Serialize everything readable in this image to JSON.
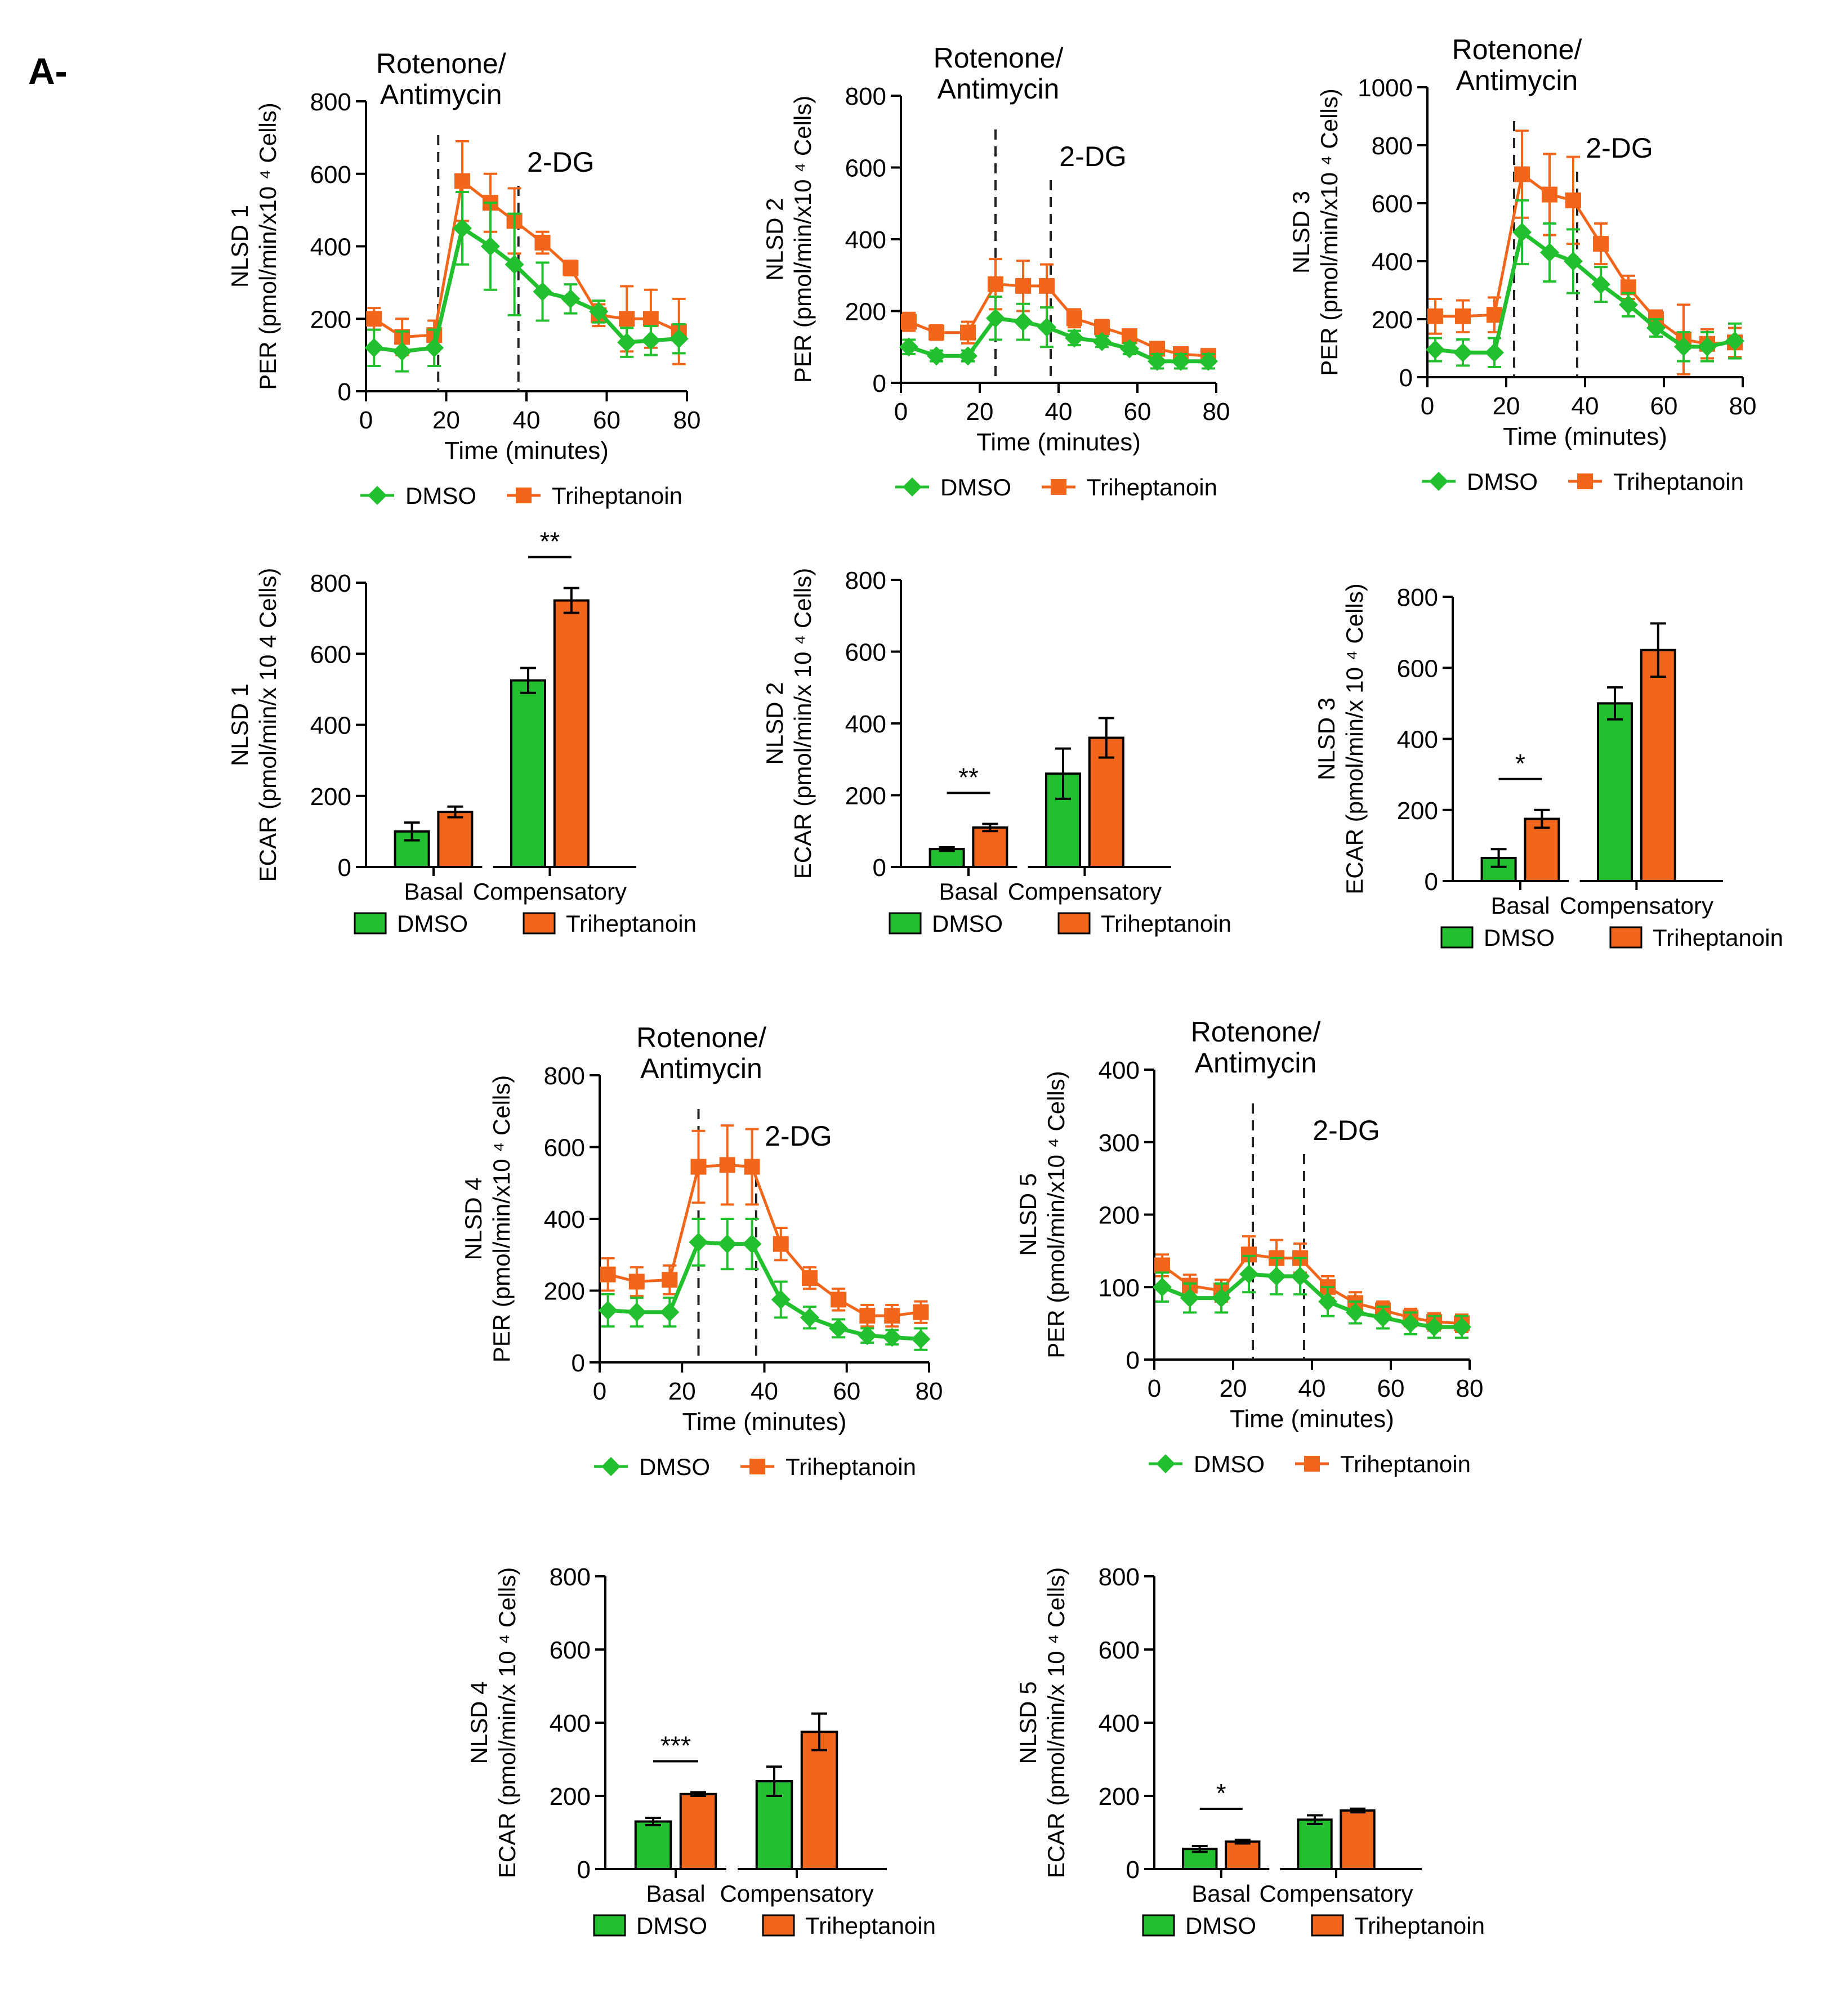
{
  "panel_label": "A-",
  "colors": {
    "dmso": "#22C02E",
    "triheptanoin": "#F2661B",
    "axis": "#000000"
  },
  "chart_data": [
    {
      "id": "per-nlsd1",
      "type": "line",
      "title_lines": [
        "Rotenone/",
        "Antimycin"
      ],
      "marker2_label": "2-DG",
      "ylabel_lines": [
        "NLSD 1",
        "PER (pmol/min/x10 ⁴ Cells)"
      ],
      "xlabel": "Time (minutes)",
      "xlim": [
        0,
        80
      ],
      "ylim": [
        0,
        800
      ],
      "xticks": [
        0,
        20,
        40,
        60,
        80
      ],
      "yticks": [
        0,
        200,
        400,
        600,
        800
      ],
      "injections": [
        18,
        38
      ],
      "x": [
        2,
        9,
        17,
        24,
        31,
        37,
        44,
        51,
        58,
        65,
        71,
        78
      ],
      "series": [
        {
          "name": "DMSO",
          "marker": "diamond",
          "values": [
            120,
            110,
            120,
            450,
            400,
            350,
            275,
            255,
            220,
            135,
            140,
            145
          ],
          "errors": [
            50,
            55,
            50,
            100,
            120,
            140,
            80,
            40,
            30,
            40,
            40,
            40
          ]
        },
        {
          "name": "Triheptanoin",
          "marker": "square",
          "values": [
            200,
            150,
            155,
            580,
            520,
            470,
            410,
            340,
            210,
            200,
            200,
            165
          ],
          "errors": [
            30,
            50,
            40,
            110,
            80,
            90,
            30,
            20,
            30,
            90,
            80,
            90
          ]
        }
      ],
      "legend": [
        "DMSO",
        "Triheptanoin"
      ]
    },
    {
      "id": "per-nlsd2",
      "type": "line",
      "title_lines": [
        "Rotenone/",
        "Antimycin"
      ],
      "marker2_label": "2-DG",
      "ylabel_lines": [
        "NLSD 2",
        "PER (pmol/min/x10 ⁴ Cells)"
      ],
      "xlabel": "Time (minutes)",
      "xlim": [
        0,
        80
      ],
      "ylim": [
        0,
        800
      ],
      "xticks": [
        0,
        20,
        40,
        60,
        80
      ],
      "yticks": [
        0,
        200,
        400,
        600,
        800
      ],
      "injections": [
        24,
        38
      ],
      "x": [
        2,
        9,
        17,
        24,
        31,
        37,
        44,
        51,
        58,
        65,
        71,
        78
      ],
      "series": [
        {
          "name": "DMSO",
          "marker": "diamond",
          "values": [
            100,
            75,
            75,
            180,
            170,
            155,
            125,
            115,
            95,
            60,
            60,
            60
          ],
          "errors": [
            20,
            15,
            15,
            60,
            50,
            55,
            20,
            15,
            15,
            20,
            20,
            20
          ]
        },
        {
          "name": "Triheptanoin",
          "marker": "square",
          "values": [
            170,
            140,
            140,
            275,
            270,
            270,
            180,
            155,
            130,
            95,
            80,
            75
          ],
          "errors": [
            25,
            20,
            30,
            70,
            70,
            60,
            25,
            20,
            15,
            15,
            15,
            15
          ]
        }
      ],
      "legend": [
        "DMSO",
        "Triheptanoin"
      ]
    },
    {
      "id": "per-nlsd3",
      "type": "line",
      "title_lines": [
        "Rotenone/",
        "Antimycin"
      ],
      "marker2_label": "2-DG",
      "ylabel_lines": [
        "NLSD 3",
        "PER (pmol/min/x10 ⁴ Cells)"
      ],
      "xlabel": "Time (minutes)",
      "xlim": [
        0,
        80
      ],
      "ylim": [
        0,
        1000
      ],
      "xticks": [
        0,
        20,
        40,
        60,
        80
      ],
      "yticks": [
        0,
        200,
        400,
        600,
        800,
        1000
      ],
      "injections": [
        22,
        38
      ],
      "x": [
        2,
        9,
        17,
        24,
        31,
        37,
        44,
        51,
        58,
        65,
        71,
        78
      ],
      "series": [
        {
          "name": "DMSO",
          "marker": "diamond",
          "values": [
            95,
            85,
            85,
            500,
            430,
            400,
            320,
            250,
            170,
            105,
            105,
            125
          ],
          "errors": [
            40,
            45,
            50,
            110,
            100,
            110,
            60,
            40,
            30,
            50,
            50,
            60
          ]
        },
        {
          "name": "Triheptanoin",
          "marker": "square",
          "values": [
            210,
            210,
            215,
            700,
            630,
            610,
            460,
            310,
            200,
            130,
            115,
            120
          ],
          "errors": [
            60,
            55,
            60,
            150,
            140,
            150,
            70,
            40,
            30,
            120,
            50,
            50
          ]
        }
      ],
      "legend": [
        "DMSO",
        "Triheptanoin"
      ]
    },
    {
      "id": "ecar-nlsd1",
      "type": "bar",
      "ylabel_lines": [
        "NLSD 1",
        "ECAR (pmol/min/x 10 4 Cells)"
      ],
      "categories": [
        "Basal",
        "Compensatory"
      ],
      "ylim": [
        0,
        800
      ],
      "yticks": [
        0,
        200,
        400,
        600,
        800
      ],
      "series": [
        {
          "name": "DMSO",
          "values": [
            100,
            525
          ],
          "errors": [
            25,
            35
          ]
        },
        {
          "name": "Triheptanoin",
          "values": [
            155,
            750
          ],
          "errors": [
            15,
            35
          ]
        }
      ],
      "significance": [
        {
          "category": 1,
          "label": "**"
        }
      ],
      "legend": [
        "DMSO",
        "Triheptanoin"
      ]
    },
    {
      "id": "ecar-nlsd2",
      "type": "bar",
      "ylabel_lines": [
        "NLSD 2",
        "ECAR (pmol/min/x 10 ⁴ Cells)"
      ],
      "categories": [
        "Basal",
        "Compensatory"
      ],
      "ylim": [
        0,
        800
      ],
      "yticks": [
        0,
        200,
        400,
        600,
        800
      ],
      "series": [
        {
          "name": "DMSO",
          "values": [
            50,
            260
          ],
          "errors": [
            5,
            70
          ]
        },
        {
          "name": "Triheptanoin",
          "values": [
            110,
            360
          ],
          "errors": [
            10,
            55
          ]
        }
      ],
      "significance": [
        {
          "category": 0,
          "label": "**"
        }
      ],
      "legend": [
        "DMSO",
        "Triheptanoin"
      ]
    },
    {
      "id": "ecar-nlsd3",
      "type": "bar",
      "ylabel_lines": [
        "NLSD 3",
        "ECAR (pmol/min/x 10 ⁴ Cells)"
      ],
      "categories": [
        "Basal",
        "Compensatory"
      ],
      "ylim": [
        0,
        800
      ],
      "yticks": [
        0,
        200,
        400,
        600,
        800
      ],
      "series": [
        {
          "name": "DMSO",
          "values": [
            65,
            500
          ],
          "errors": [
            25,
            45
          ]
        },
        {
          "name": "Triheptanoin",
          "values": [
            175,
            650
          ],
          "errors": [
            25,
            75
          ]
        }
      ],
      "significance": [
        {
          "category": 0,
          "label": "*"
        }
      ],
      "legend": [
        "DMSO",
        "Triheptanoin"
      ]
    },
    {
      "id": "per-nlsd4",
      "type": "line",
      "title_lines": [
        "Rotenone/",
        "Antimycin"
      ],
      "marker2_label": "2-DG",
      "ylabel_lines": [
        "NLSD 4",
        "PER (pmol/min/x10 ⁴ Cells)"
      ],
      "xlabel": "Time (minutes)",
      "xlim": [
        0,
        80
      ],
      "ylim": [
        0,
        800
      ],
      "xticks": [
        0,
        20,
        40,
        60,
        80
      ],
      "yticks": [
        0,
        200,
        400,
        600,
        800
      ],
      "injections": [
        24,
        38
      ],
      "x": [
        2,
        9,
        17,
        24,
        31,
        37,
        44,
        51,
        58,
        65,
        71,
        78
      ],
      "series": [
        {
          "name": "DMSO",
          "marker": "diamond",
          "values": [
            145,
            140,
            140,
            335,
            330,
            330,
            175,
            125,
            95,
            75,
            70,
            65
          ],
          "errors": [
            45,
            40,
            40,
            65,
            70,
            70,
            50,
            30,
            25,
            20,
            20,
            30
          ]
        },
        {
          "name": "Triheptanoin",
          "marker": "square",
          "values": [
            245,
            225,
            230,
            545,
            550,
            545,
            330,
            235,
            175,
            130,
            130,
            140
          ],
          "errors": [
            45,
            40,
            40,
            100,
            110,
            105,
            45,
            30,
            30,
            30,
            30,
            30
          ]
        }
      ],
      "legend": [
        "DMSO",
        "Triheptanoin"
      ]
    },
    {
      "id": "per-nlsd5",
      "type": "line",
      "title_lines": [
        "Rotenone/",
        "Antimycin"
      ],
      "marker2_label": "2-DG",
      "ylabel_lines": [
        "NLSD 5",
        "PER (pmol/min/x10 ⁴ Cells)"
      ],
      "xlabel": "Time (minutes)",
      "xlim": [
        0,
        80
      ],
      "ylim": [
        0,
        400
      ],
      "xticks": [
        0,
        20,
        40,
        60,
        80
      ],
      "yticks": [
        0,
        100,
        200,
        300,
        400
      ],
      "injections": [
        25,
        38
      ],
      "x": [
        2,
        9,
        17,
        24,
        31,
        37,
        44,
        51,
        58,
        65,
        71,
        78
      ],
      "series": [
        {
          "name": "DMSO",
          "marker": "diamond",
          "values": [
            100,
            85,
            85,
            118,
            115,
            115,
            80,
            65,
            58,
            50,
            45,
            45
          ],
          "errors": [
            20,
            20,
            20,
            25,
            25,
            25,
            20,
            15,
            15,
            15,
            15,
            15
          ]
        },
        {
          "name": "Triheptanoin",
          "marker": "square",
          "values": [
            130,
            102,
            95,
            145,
            140,
            140,
            100,
            78,
            68,
            58,
            52,
            50
          ],
          "errors": [
            15,
            15,
            15,
            25,
            25,
            20,
            15,
            15,
            12,
            12,
            12,
            12
          ]
        }
      ],
      "legend": [
        "DMSO",
        "Triheptanoin"
      ]
    },
    {
      "id": "ecar-nlsd4",
      "type": "bar",
      "ylabel_lines": [
        "NLSD 4",
        "ECAR (pmol/min/x 10 ⁴ Cells)"
      ],
      "categories": [
        "Basal",
        "Compensatory"
      ],
      "ylim": [
        0,
        800
      ],
      "yticks": [
        0,
        200,
        400,
        600,
        800
      ],
      "series": [
        {
          "name": "DMSO",
          "values": [
            130,
            240
          ],
          "errors": [
            10,
            40
          ]
        },
        {
          "name": "Triheptanoin",
          "values": [
            205,
            375
          ],
          "errors": [
            5,
            50
          ]
        }
      ],
      "significance": [
        {
          "category": 0,
          "label": "***"
        }
      ],
      "legend": [
        "DMSO",
        "Triheptanoin"
      ]
    },
    {
      "id": "ecar-nlsd5",
      "type": "bar",
      "ylabel_lines": [
        "NLSD 5",
        "ECAR (pmol/min/x 10 ⁴ Cells)"
      ],
      "categories": [
        "Basal",
        "Compensatory"
      ],
      "ylim": [
        0,
        800
      ],
      "yticks": [
        0,
        200,
        400,
        600,
        800
      ],
      "series": [
        {
          "name": "DMSO",
          "values": [
            55,
            135
          ],
          "errors": [
            8,
            12
          ]
        },
        {
          "name": "Triheptanoin",
          "values": [
            75,
            160
          ],
          "errors": [
            5,
            5
          ]
        }
      ],
      "significance": [
        {
          "category": 0,
          "label": "*"
        }
      ],
      "legend": [
        "DMSO",
        "Triheptanoin"
      ]
    }
  ]
}
